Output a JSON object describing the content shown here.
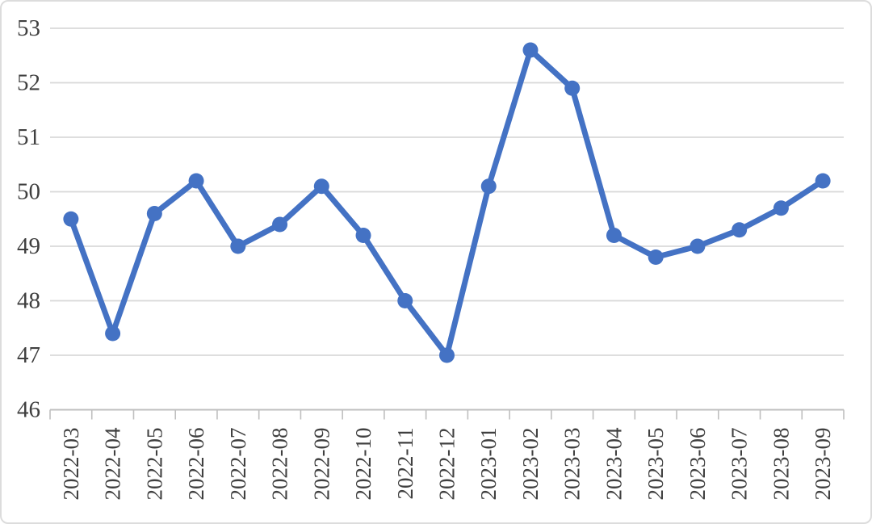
{
  "chart_data": {
    "type": "line",
    "title": "",
    "xlabel": "",
    "ylabel": "",
    "categories": [
      "2022-03",
      "2022-04",
      "2022-05",
      "2022-06",
      "2022-07",
      "2022-08",
      "2022-09",
      "2022-10",
      "2022-11",
      "2022-12",
      "2023-01",
      "2023-02",
      "2023-03",
      "2023-04",
      "2023-05",
      "2023-06",
      "2023-07",
      "2023-08",
      "2023-09"
    ],
    "values": [
      49.5,
      47.4,
      49.6,
      50.2,
      49.0,
      49.4,
      50.1,
      49.2,
      48.0,
      47.0,
      50.1,
      52.6,
      51.9,
      49.2,
      48.8,
      49.0,
      49.3,
      49.7,
      50.2
    ],
    "ylim": [
      46,
      53
    ],
    "yticks": [
      46,
      47,
      48,
      49,
      50,
      51,
      52,
      53
    ],
    "grid": true,
    "legend_position": "none",
    "marker": "circle"
  },
  "style": {
    "line_color": "#4472C4",
    "marker_color": "#4472C4",
    "gridline_color": "#D9D9D9",
    "axis_color": "#BFBFBF",
    "tick_label_color": "#404040",
    "background_color": "#FFFFFF",
    "border_color": "#DCDCDC"
  }
}
